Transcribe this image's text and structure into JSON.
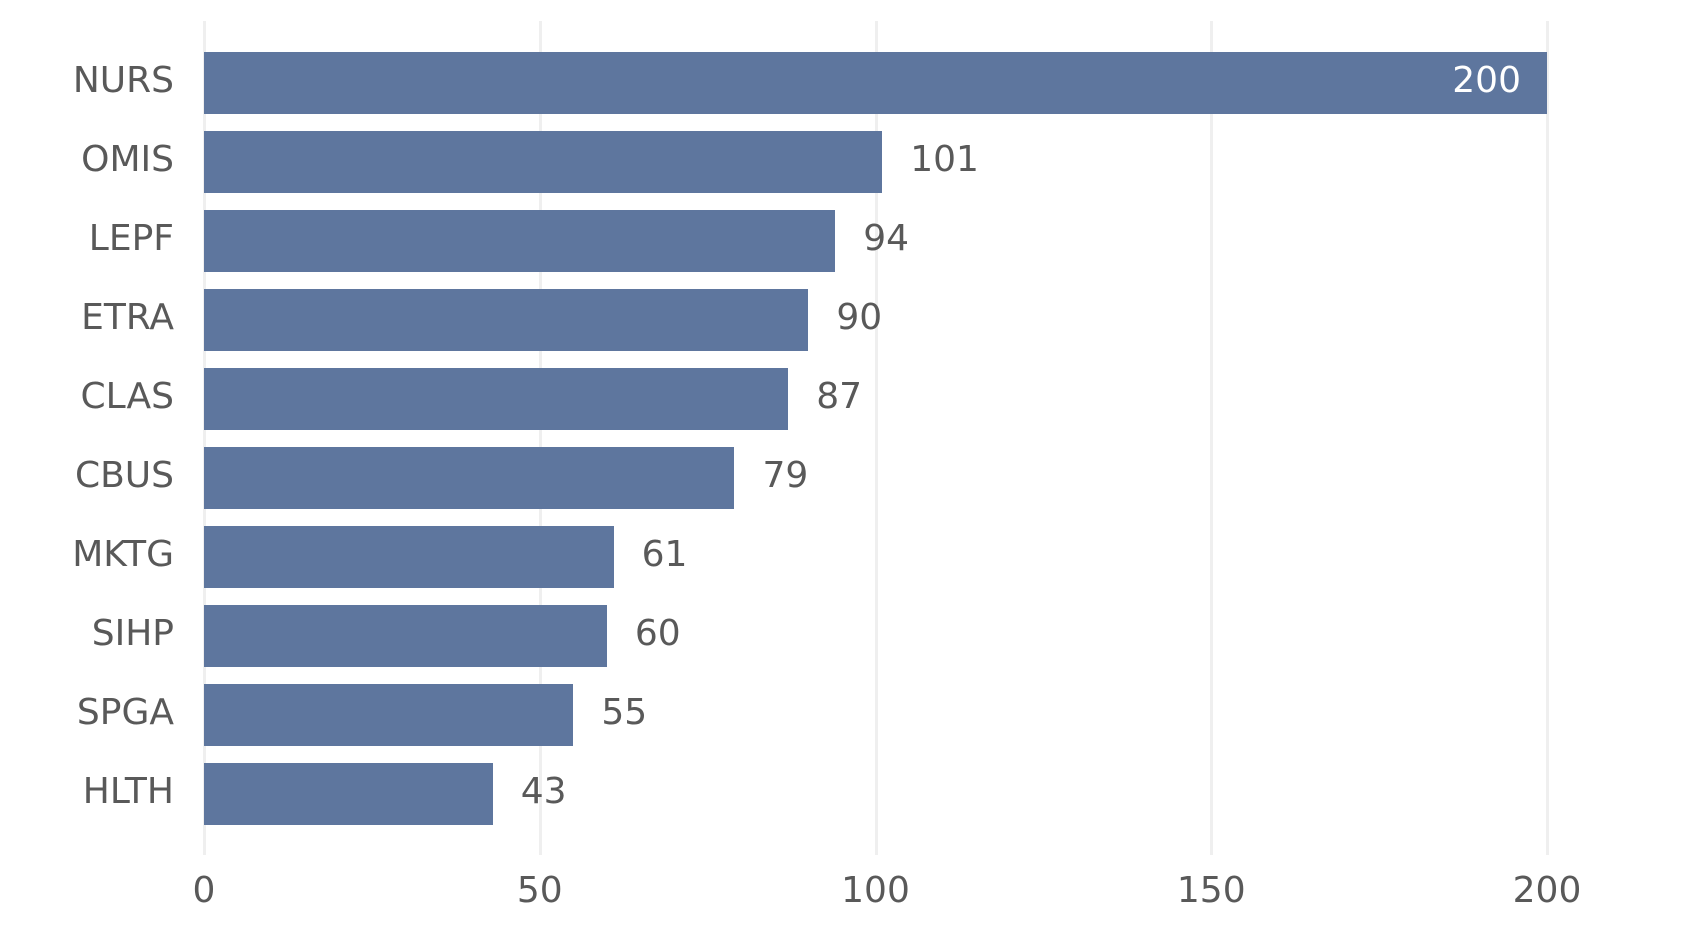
{
  "chart_data": {
    "type": "bar",
    "orientation": "horizontal",
    "title": "",
    "xlabel": "",
    "ylabel": "",
    "categories": [
      "NURS",
      "OMIS",
      "LEPF",
      "ETRA",
      "CLAS",
      "CBUS",
      "MKTG",
      "SIHP",
      "SPGA",
      "HLTH"
    ],
    "values": [
      200,
      101,
      94,
      90,
      87,
      79,
      61,
      60,
      55,
      43
    ],
    "xlim": [
      0,
      200
    ],
    "xticks": [
      "0",
      "50",
      "100",
      "150",
      "200"
    ],
    "grid": "vertical",
    "legend": null,
    "bar_color": "#5e769e",
    "data_labels": true
  }
}
